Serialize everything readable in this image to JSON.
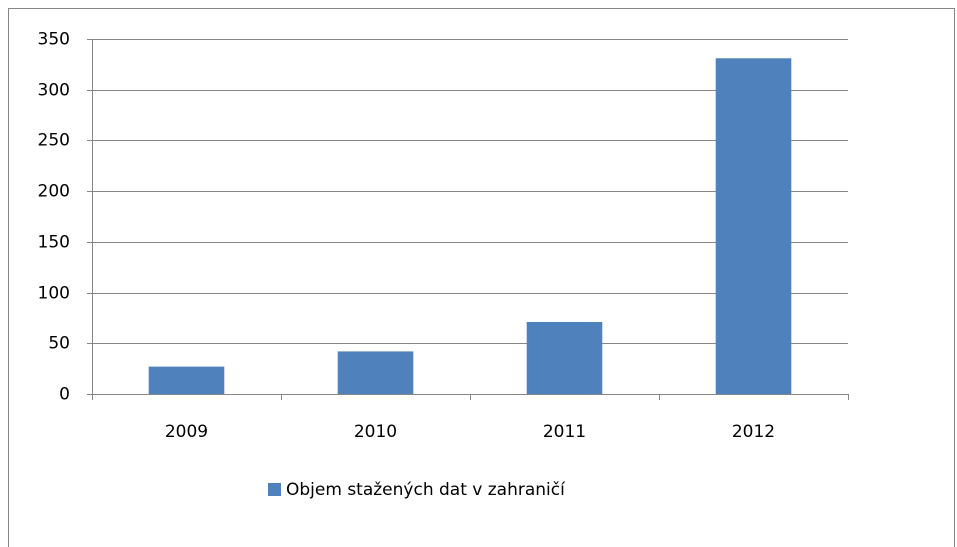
{
  "chart_data": {
    "type": "bar",
    "categories": [
      "2009",
      "2010",
      "2011",
      "2012"
    ],
    "series": [
      {
        "name": "Objem stažených dat v zahraničí",
        "color": "#4f81bd",
        "values": [
          27,
          42,
          71,
          331
        ]
      }
    ],
    "ylim": [
      0,
      350
    ],
    "yticks": [
      0,
      50,
      100,
      150,
      200,
      250,
      300,
      350
    ],
    "grid": true,
    "legend": "bottom"
  }
}
